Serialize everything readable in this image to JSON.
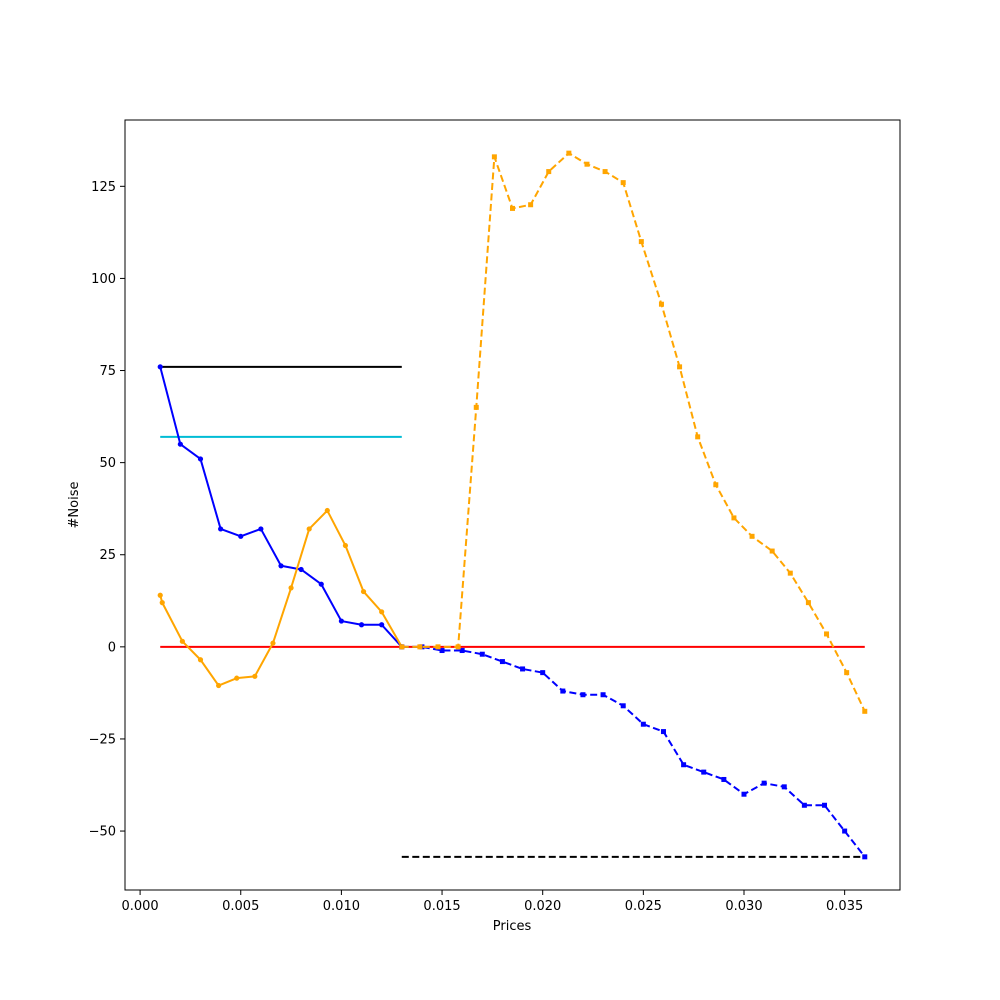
{
  "chart_data": {
    "type": "line",
    "title": "",
    "xlabel": "Prices",
    "ylabel": "#Noise",
    "xlim": [
      -0.00075,
      0.03775
    ],
    "ylim": [
      -66,
      143
    ],
    "xticks": [
      0.0,
      0.005,
      0.01,
      0.015,
      0.02,
      0.025,
      0.03,
      0.035
    ],
    "xtick_labels": [
      "0.000",
      "0.005",
      "0.010",
      "0.015",
      "0.020",
      "0.025",
      "0.030",
      "0.035"
    ],
    "yticks": [
      -50,
      -25,
      0,
      25,
      50,
      75,
      100,
      125
    ],
    "ytick_labels": [
      "−50",
      "−25",
      "0",
      "25",
      "50",
      "75",
      "100",
      "125"
    ],
    "grid": false,
    "legend": "none",
    "series": [
      {
        "color": "#0000ff",
        "style": "solid",
        "marker": "circle",
        "x": [
          0.001,
          0.002,
          0.003,
          0.004,
          0.005,
          0.006,
          0.007,
          0.008,
          0.009,
          0.01,
          0.011,
          0.012,
          0.013
        ],
        "y": [
          76,
          55,
          51,
          32,
          30,
          32,
          22,
          21,
          17,
          7,
          6,
          6,
          0
        ]
      },
      {
        "color": "#ffa500",
        "style": "solid",
        "marker": "circle",
        "x": [
          0.001,
          0.0011,
          0.0021,
          0.003,
          0.0039,
          0.0048,
          0.0057,
          0.0066,
          0.0075,
          0.0084,
          0.0093,
          0.0102,
          0.0111,
          0.012,
          0.013
        ],
        "y": [
          14,
          12,
          1.5,
          -3.5,
          -10.5,
          -8.5,
          -8,
          1,
          16,
          32,
          37,
          27.5,
          15,
          9.5,
          0
        ]
      },
      {
        "color": "#0000ff",
        "style": "dashed",
        "marker": "square",
        "x": [
          0.013,
          0.014,
          0.015,
          0.016,
          0.017,
          0.018,
          0.019,
          0.02,
          0.021,
          0.022,
          0.023,
          0.024,
          0.025,
          0.026,
          0.027,
          0.028,
          0.029,
          0.03,
          0.031,
          0.032,
          0.033,
          0.034,
          0.035,
          0.036
        ],
        "y": [
          0,
          0,
          -1,
          -1,
          -2,
          -4,
          -6,
          -7,
          -12,
          -13,
          -13,
          -16,
          -21,
          -23,
          -32,
          -34,
          -36,
          -40,
          -37,
          -38,
          -43,
          -43,
          -50,
          -57
        ]
      },
      {
        "color": "#ffa500",
        "style": "dashed",
        "marker": "square",
        "x": [
          0.013,
          0.0139,
          0.0148,
          0.0158,
          0.0167,
          0.0176,
          0.0185,
          0.0194,
          0.0203,
          0.0213,
          0.0222,
          0.0231,
          0.024,
          0.0249,
          0.0259,
          0.0268,
          0.0277,
          0.0286,
          0.0295,
          0.0304,
          0.0314,
          0.0323,
          0.0332,
          0.0341,
          0.0351,
          0.036
        ],
        "y": [
          0,
          0,
          0,
          0,
          65,
          133,
          119,
          120,
          129,
          134,
          131,
          129,
          126,
          110,
          93,
          76,
          57,
          44,
          35,
          30,
          26,
          20,
          12,
          3.5,
          -7,
          -17.5
        ]
      }
    ],
    "reference_lines": [
      {
        "color": "#000000",
        "style": "solid",
        "x": [
          0.001,
          0.013
        ],
        "y": 76
      },
      {
        "color": "#00bcd4",
        "style": "solid",
        "x": [
          0.001,
          0.013
        ],
        "y": 57
      },
      {
        "color": "#ff0000",
        "style": "solid",
        "x": [
          0.001,
          0.036
        ],
        "y": 0
      },
      {
        "color": "#000000",
        "style": "dashed",
        "x": [
          0.013,
          0.036
        ],
        "y": -57
      }
    ]
  }
}
